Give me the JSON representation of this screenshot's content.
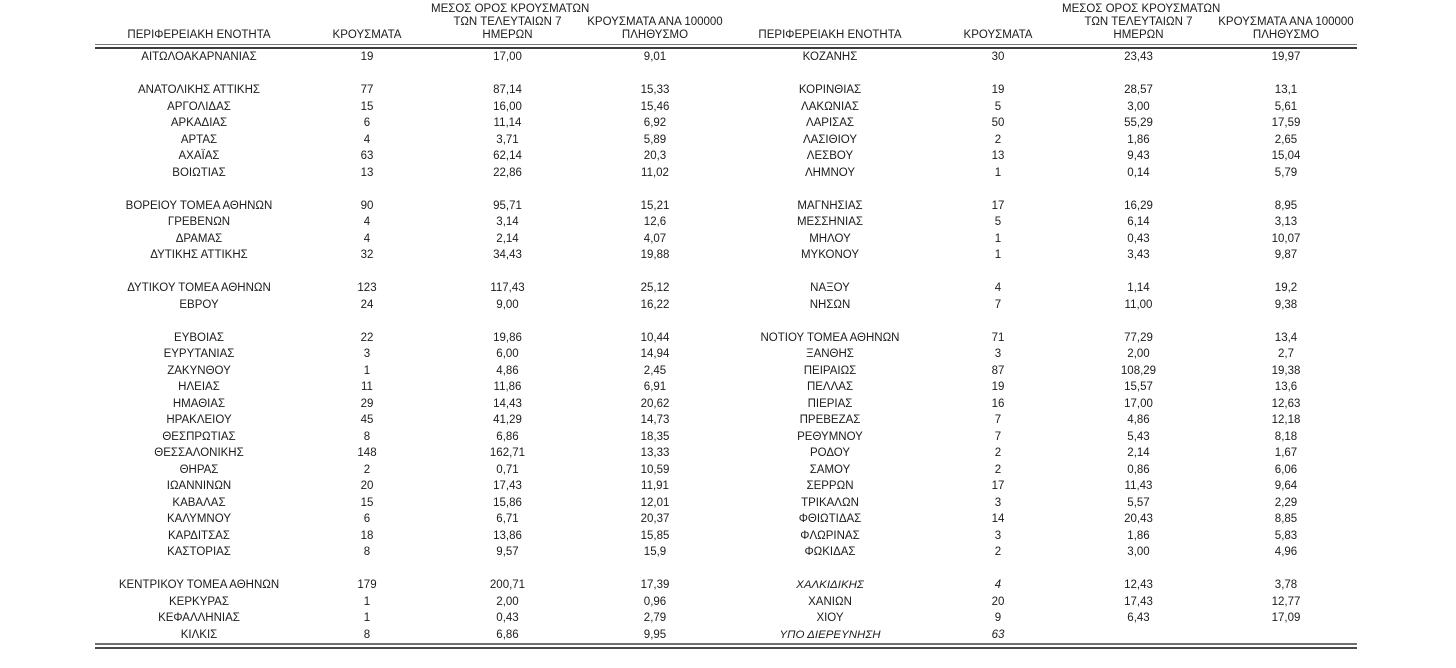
{
  "table": {
    "headers": {
      "region": "ΠΕΡΙΦΕΡΕΙΑΚΗ ΕΝΟΤΗΤΑ",
      "cases": "ΚΡΟΥΣΜΑΤΑ",
      "avg7_line1": "ΜΕΣΟΣ ΟΡΟΣ ΚΡΟΥΣΜΑΤΩΝ",
      "avg7_line2": "ΤΩΝ ΤΕΛΕΥΤΑΙΩΝ 7",
      "avg7_line3": "ΗΜΕΡΩΝ",
      "per100k_line1": "ΚΡΟΥΣΜΑΤΑ ΑΝΑ 100000",
      "per100k_line2": "ΠΛΗΘΥΣΜΟ"
    },
    "rows": [
      {
        "left": [
          "ΑΙΤΩΛΟΑΚΑΡΝΑΝΙΑΣ",
          "19",
          "17,00",
          "9,01"
        ],
        "right": [
          "ΚΟΖΑΝΗΣ",
          "30",
          "23,43",
          "19,97"
        ]
      },
      {
        "blank": true
      },
      {
        "left": [
          "ΑΝΑΤΟΛΙΚΗΣ ΑΤΤΙΚΗΣ",
          "77",
          "87,14",
          "15,33"
        ],
        "right": [
          "ΚΟΡΙΝΘΙΑΣ",
          "19",
          "28,57",
          "13,1"
        ]
      },
      {
        "left": [
          "ΑΡΓΟΛΙΔΑΣ",
          "15",
          "16,00",
          "15,46"
        ],
        "right": [
          "ΛΑΚΩΝΙΑΣ",
          "5",
          "3,00",
          "5,61"
        ]
      },
      {
        "left": [
          "ΑΡΚΑΔΙΑΣ",
          "6",
          "11,14",
          "6,92"
        ],
        "right": [
          "ΛΑΡΙΣΑΣ",
          "50",
          "55,29",
          "17,59"
        ]
      },
      {
        "left": [
          "ΑΡΤΑΣ",
          "4",
          "3,71",
          "5,89"
        ],
        "right": [
          "ΛΑΣΙΘΙΟΥ",
          "2",
          "1,86",
          "2,65"
        ]
      },
      {
        "left": [
          "ΑΧΑΪΑΣ",
          "63",
          "62,14",
          "20,3"
        ],
        "right": [
          "ΛΕΣΒΟΥ",
          "13",
          "9,43",
          "15,04"
        ]
      },
      {
        "left": [
          "ΒΟΙΩΤΙΑΣ",
          "13",
          "22,86",
          "11,02"
        ],
        "right": [
          "ΛΗΜΝΟΥ",
          "1",
          "0,14",
          "5,79"
        ]
      },
      {
        "blank": true
      },
      {
        "left": [
          "ΒΟΡΕΙΟΥ ΤΟΜΕΑ ΑΘΗΝΩΝ",
          "90",
          "95,71",
          "15,21"
        ],
        "right": [
          "ΜΑΓΝΗΣΙΑΣ",
          "17",
          "16,29",
          "8,95"
        ]
      },
      {
        "left": [
          "ΓΡΕΒΕΝΩΝ",
          "4",
          "3,14",
          "12,6"
        ],
        "right": [
          "ΜΕΣΣΗΝΙΑΣ",
          "5",
          "6,14",
          "3,13"
        ]
      },
      {
        "left": [
          "ΔΡΑΜΑΣ",
          "4",
          "2,14",
          "4,07"
        ],
        "right": [
          "ΜΗΛΟΥ",
          "1",
          "0,43",
          "10,07"
        ]
      },
      {
        "left": [
          "ΔΥΤΙΚΗΣ ΑΤΤΙΚΗΣ",
          "32",
          "34,43",
          "19,88"
        ],
        "right": [
          "ΜΥΚΟΝΟΥ",
          "1",
          "3,43",
          "9,87"
        ]
      },
      {
        "blank": true
      },
      {
        "left": [
          "ΔΥΤΙΚΟΥ ΤΟΜΕΑ ΑΘΗΝΩΝ",
          "123",
          "117,43",
          "25,12"
        ],
        "right": [
          "ΝΑΞΟΥ",
          "4",
          "1,14",
          "19,2"
        ]
      },
      {
        "left": [
          "ΕΒΡΟΥ",
          "24",
          "9,00",
          "16,22"
        ],
        "right": [
          "ΝΗΣΩΝ",
          "7",
          "11,00",
          "9,38"
        ]
      },
      {
        "blank": true
      },
      {
        "left": [
          "ΕΥΒΟΙΑΣ",
          "22",
          "19,86",
          "10,44"
        ],
        "right": [
          "ΝΟΤΙΟΥ ΤΟΜΕΑ ΑΘΗΝΩΝ",
          "71",
          "77,29",
          "13,4"
        ]
      },
      {
        "left": [
          "ΕΥΡΥΤΑΝΙΑΣ",
          "3",
          "6,00",
          "14,94"
        ],
        "right": [
          "ΞΑΝΘΗΣ",
          "3",
          "2,00",
          "2,7"
        ]
      },
      {
        "left": [
          "ΖΑΚΥΝΘΟΥ",
          "1",
          "4,86",
          "2,45"
        ],
        "right": [
          "ΠΕΙΡΑΙΩΣ",
          "87",
          "108,29",
          "19,38"
        ]
      },
      {
        "left": [
          "ΗΛΕΙΑΣ",
          "11",
          "11,86",
          "6,91"
        ],
        "right": [
          "ΠΕΛΛΑΣ",
          "19",
          "15,57",
          "13,6"
        ]
      },
      {
        "left": [
          "ΗΜΑΘΙΑΣ",
          "29",
          "14,43",
          "20,62"
        ],
        "right": [
          "ΠΙΕΡΙΑΣ",
          "16",
          "17,00",
          "12,63"
        ]
      },
      {
        "left": [
          "ΗΡΑΚΛΕΙΟΥ",
          "45",
          "41,29",
          "14,73"
        ],
        "right": [
          "ΠΡΕΒΕΖΑΣ",
          "7",
          "4,86",
          "12,18"
        ]
      },
      {
        "left": [
          "ΘΕΣΠΡΩΤΙΑΣ",
          "8",
          "6,86",
          "18,35"
        ],
        "right": [
          "ΡΕΘΥΜΝΟΥ",
          "7",
          "5,43",
          "8,18"
        ]
      },
      {
        "left": [
          "ΘΕΣΣΑΛΟΝΙΚΗΣ",
          "148",
          "162,71",
          "13,33"
        ],
        "right": [
          "ΡΟΔΟΥ",
          "2",
          "2,14",
          "1,67"
        ]
      },
      {
        "left": [
          "ΘΗΡΑΣ",
          "2",
          "0,71",
          "10,59"
        ],
        "right": [
          "ΣΑΜΟΥ",
          "2",
          "0,86",
          "6,06"
        ]
      },
      {
        "left": [
          "ΙΩΑΝΝΙΝΩΝ",
          "20",
          "17,43",
          "11,91"
        ],
        "right": [
          "ΣΕΡΡΩΝ",
          "17",
          "11,43",
          "9,64"
        ]
      },
      {
        "left": [
          "ΚΑΒΑΛΑΣ",
          "15",
          "15,86",
          "12,01"
        ],
        "right": [
          "ΤΡΙΚΑΛΩΝ",
          "3",
          "5,57",
          "2,29"
        ]
      },
      {
        "left": [
          "ΚΑΛΥΜΝΟΥ",
          "6",
          "6,71",
          "20,37"
        ],
        "right": [
          "ΦΘΙΩΤΙΔΑΣ",
          "14",
          "20,43",
          "8,85"
        ]
      },
      {
        "left": [
          "ΚΑΡΔΙΤΣΑΣ",
          "18",
          "13,86",
          "15,85"
        ],
        "right": [
          "ΦΛΩΡΙΝΑΣ",
          "3",
          "1,86",
          "5,83"
        ]
      },
      {
        "left": [
          "ΚΑΣΤΟΡΙΑΣ",
          "8",
          "9,57",
          "15,9"
        ],
        "right": [
          "ΦΩΚΙΔΑΣ",
          "2",
          "3,00",
          "4,96"
        ]
      },
      {
        "blank": true
      },
      {
        "left": [
          "ΚΕΝΤΡΙΚΟΥ ΤΟΜΕΑ ΑΘΗΝΩΝ",
          "179",
          "200,71",
          "17,39"
        ],
        "right": [
          "ΧΑΛΚΙΔΙΚΗΣ",
          "4",
          "12,43",
          "3,78"
        ],
        "right_italic": [
          true,
          true,
          false,
          false
        ]
      },
      {
        "left": [
          "ΚΕΡΚΥΡΑΣ",
          "1",
          "2,00",
          "0,96"
        ],
        "right": [
          "ΧΑΝΙΩΝ",
          "20",
          "17,43",
          "12,77"
        ]
      },
      {
        "left": [
          "ΚΕΦΑΛΛΗΝΙΑΣ",
          "1",
          "0,43",
          "2,79"
        ],
        "right": [
          "ΧΙΟΥ",
          "9",
          "6,43",
          "17,09"
        ]
      },
      {
        "left": [
          "ΚΙΛΚΙΣ",
          "8",
          "6,86",
          "9,95"
        ],
        "right": [
          "ΥΠΟ ΔΙΕΡΕΥΝΗΣΗ",
          "63",
          "",
          ""
        ],
        "right_italic": [
          true,
          true,
          false,
          false
        ]
      }
    ]
  }
}
